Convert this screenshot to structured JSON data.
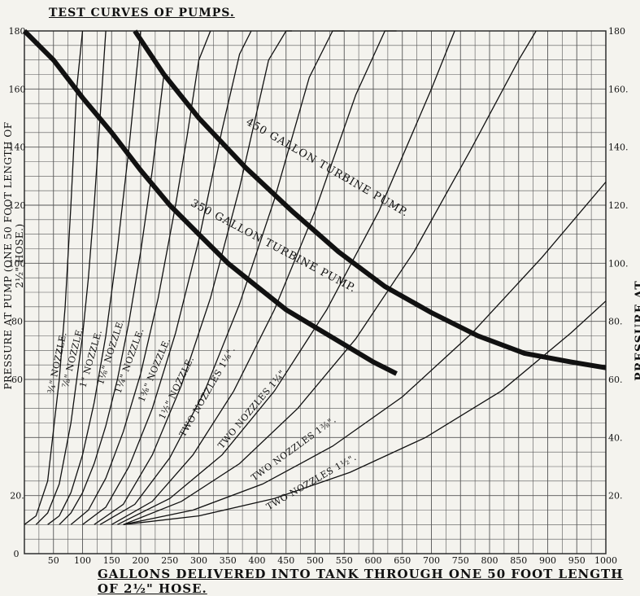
{
  "title": "TEST CURVES OF PUMPS.",
  "xlabel": "GALLONS DELIVERED INTO TANK THROUGH ONE 50 FOOT LENGTH OF 2½\" HOSE.",
  "ylabel_left": "PRESSURE AT PUMP (ONE 50 FOOT LENGTH OF 2½\" HOSE.)",
  "ylabel_right": "PRESSURE AT PUMP.",
  "chart_data": {
    "type": "line",
    "xlim": [
      0,
      1000
    ],
    "ylim": [
      0,
      180
    ],
    "grid": true,
    "x_ticks": [
      50,
      100,
      150,
      200,
      250,
      300,
      350,
      400,
      450,
      500,
      550,
      600,
      650,
      700,
      750,
      800,
      850,
      900,
      950,
      1000
    ],
    "x_tick_labels": [
      "50",
      "100",
      "150",
      "200",
      "250",
      "300",
      "350",
      "400",
      "450",
      "500",
      "550",
      "600",
      "650",
      "700",
      "750",
      "800",
      "850",
      "900",
      "950",
      "1000"
    ],
    "x_origin_label": "0",
    "y_ticks_left": [
      180,
      160,
      140,
      120,
      100,
      80,
      60,
      20
    ],
    "y_tick_labels_left": [
      "180",
      "160",
      "140",
      "120",
      "100",
      "80",
      "60",
      "20."
    ],
    "y_ticks_right": [
      180,
      160,
      140,
      120,
      100,
      80,
      60,
      40,
      20
    ],
    "y_tick_labels_right": [
      "180",
      "160.",
      "140.",
      "120.",
      "100.",
      "80.",
      "60.",
      "40.",
      "20."
    ],
    "nozzle_series": [
      {
        "name": "¾\" NOZZLE.",
        "x": [
          0,
          20,
          40,
          60,
          70,
          80,
          90,
          100
        ],
        "y": [
          10,
          13,
          25,
          60,
          85,
          120,
          160,
          180
        ]
      },
      {
        "name": "⅞\" NOZZLE.",
        "x": [
          20,
          40,
          60,
          80,
          100,
          110,
          120,
          130,
          140
        ],
        "y": [
          10,
          14,
          24,
          45,
          75,
          95,
          120,
          150,
          180
        ]
      },
      {
        "name": "1\" NOZZLE.",
        "x": [
          40,
          60,
          80,
          100,
          120,
          140,
          160,
          180,
          200
        ],
        "y": [
          10,
          13,
          21,
          34,
          52,
          75,
          105,
          140,
          180
        ]
      },
      {
        "name": "1⅛\" NOZZLE.",
        "x": [
          60,
          80,
          100,
          120,
          140,
          160,
          180,
          200,
          220,
          240
        ],
        "y": [
          10,
          14,
          21,
          31,
          44,
          60,
          80,
          104,
          132,
          165
        ]
      },
      {
        "name": "1¼\" NOZZLE.",
        "x": [
          80,
          110,
          140,
          170,
          200,
          230,
          260,
          280,
          300,
          320
        ],
        "y": [
          10,
          15,
          26,
          42,
          62,
          88,
          120,
          144,
          170,
          180
        ]
      },
      {
        "name": "1⅜\" NOZZLE.",
        "x": [
          100,
          140,
          180,
          220,
          260,
          300,
          340,
          370,
          390
        ],
        "y": [
          10,
          16,
          30,
          50,
          76,
          108,
          146,
          172,
          180
        ]
      },
      {
        "name": "1½\" NOZZLE.",
        "x": [
          120,
          170,
          220,
          270,
          320,
          370,
          420,
          450,
          460
        ],
        "y": [
          10,
          17,
          34,
          58,
          88,
          126,
          170,
          180,
          180
        ]
      },
      {
        "name": "TWO NOZZLES 1⅛\".",
        "x": [
          130,
          190,
          250,
          310,
          370,
          430,
          490,
          530,
          550
        ],
        "y": [
          10,
          17,
          33,
          56,
          86,
          122,
          164,
          180,
          180
        ]
      },
      {
        "name": "TWO NOZZLES 1¼\".",
        "x": [
          150,
          220,
          290,
          360,
          430,
          500,
          570,
          620,
          640
        ],
        "y": [
          10,
          18,
          34,
          56,
          84,
          118,
          158,
          180,
          180
        ]
      },
      {
        "name": "TWO NOZZLES 1⅜\".",
        "x": [
          160,
          250,
          340,
          430,
          520,
          610,
          700,
          740
        ],
        "y": [
          10,
          19,
          34,
          56,
          84,
          118,
          160,
          180
        ]
      },
      {
        "name": "TWO NOZZLES 1½\".",
        "x": [
          170,
          270,
          370,
          470,
          570,
          670,
          770,
          850,
          880
        ],
        "y": [
          10,
          18,
          31,
          50,
          74,
          104,
          140,
          170,
          180
        ]
      },
      {
        "name": "",
        "x": [
          170,
          290,
          410,
          530,
          650,
          770,
          890,
          1000
        ],
        "y": [
          10,
          15,
          24,
          37,
          54,
          76,
          102,
          128
        ]
      },
      {
        "name": "",
        "x": [
          170,
          300,
          430,
          560,
          690,
          820,
          940,
          1000
        ],
        "y": [
          10,
          13,
          19,
          28,
          40,
          56,
          76,
          87
        ]
      }
    ],
    "pump_series": [
      {
        "name": "450 GALLON TURBINE PUMP.",
        "x": [
          190,
          240,
          300,
          380,
          460,
          540,
          620,
          700,
          780,
          860,
          940,
          1000
        ],
        "y": [
          180,
          165,
          150,
          133,
          118,
          104,
          92,
          83,
          75,
          69,
          66,
          64
        ]
      },
      {
        "name": "350 GALLON TURBINE PUMP.",
        "x": [
          0,
          50,
          100,
          150,
          200,
          250,
          300,
          350,
          400,
          450,
          500,
          550,
          600,
          640
        ],
        "y": [
          180,
          170,
          157,
          145,
          132,
          120,
          110,
          100,
          92,
          84,
          78,
          72,
          66,
          62
        ]
      }
    ]
  }
}
